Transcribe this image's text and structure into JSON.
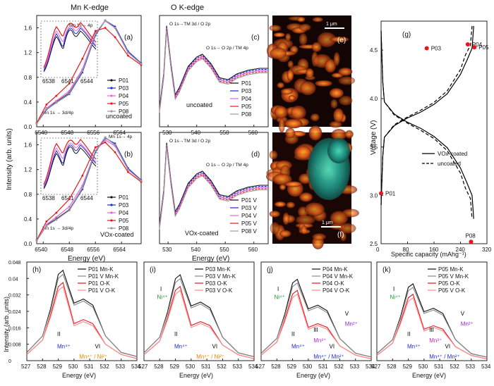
{
  "headers": {
    "mn": "Mn K-edge",
    "o": "O K-edge"
  },
  "colors": {
    "P01": "#111111",
    "P03": "#1f2bd6",
    "P04": "#e066e0",
    "P05": "#e8161b",
    "P08": "#9a9a9a",
    "V": "#888888"
  },
  "labels": {
    "ylabel_top": "Intensity (arb. units)",
    "xlabel_energy": "Energy (eV)",
    "annot_mn_4p": "Mn 1s→ 4p",
    "annot_mn_pre": "Mn 1s → 3d/4p",
    "annot_o_tm3d": "O 1s→TM 3d / O 2p",
    "annot_o_tm4p": "O 1s→ O 2p / TM 4p",
    "uncoated": "uncoated",
    "vox_coated": "VOx-coated",
    "scale": "1 μm",
    "ylabel_g": "Voltage (V)",
    "xlabel_g": "Specific capacity (mAhg⁻¹)"
  },
  "chart_data": [
    {
      "id": "a",
      "type": "line",
      "panel": "(a)",
      "xlim": [
        6538,
        6570
      ],
      "xticks": [
        6540,
        6548,
        6556,
        6564
      ],
      "yticks": [
        0.0,
        0.4,
        0.8,
        1.2,
        1.6
      ],
      "ylim": [
        0,
        1.8
      ],
      "series": [
        {
          "name": "P01",
          "x": [
            6538,
            6541,
            6544,
            6548,
            6552,
            6556,
            6559,
            6562,
            6566,
            6570
          ],
          "values": [
            0.05,
            0.3,
            0.4,
            0.55,
            0.9,
            1.5,
            1.72,
            1.6,
            1.2,
            1.02
          ]
        },
        {
          "name": "P03",
          "x": [
            6538,
            6541,
            6544,
            6548,
            6552,
            6556,
            6559,
            6562,
            6566,
            6570
          ],
          "values": [
            0.05,
            0.28,
            0.39,
            0.53,
            0.88,
            1.48,
            1.72,
            1.62,
            1.22,
            1.03
          ]
        },
        {
          "name": "P04",
          "x": [
            6538,
            6541,
            6544,
            6548,
            6552,
            6556,
            6559,
            6562,
            6566,
            6570
          ],
          "values": [
            0.05,
            0.3,
            0.42,
            0.58,
            0.93,
            1.52,
            1.71,
            1.6,
            1.2,
            1.02
          ]
        },
        {
          "name": "P05",
          "x": [
            6538,
            6541,
            6544,
            6548,
            6552,
            6556,
            6559,
            6562,
            6566,
            6570
          ],
          "values": [
            0.06,
            0.36,
            0.5,
            0.7,
            1.1,
            1.55,
            1.6,
            1.45,
            1.15,
            1.0
          ]
        },
        {
          "name": "P08",
          "x": [
            6538,
            6541,
            6544,
            6548,
            6552,
            6556,
            6559,
            6562,
            6566,
            6570
          ],
          "values": [
            0.05,
            0.29,
            0.39,
            0.54,
            0.9,
            1.5,
            1.72,
            1.6,
            1.2,
            1.02
          ]
        }
      ],
      "inset": {
        "xticks": [
          6538,
          6541,
          6544
        ]
      }
    },
    {
      "id": "b",
      "type": "line",
      "panel": "(b)",
      "xlim": [
        6538,
        6570
      ],
      "xticks": [
        6540,
        6548,
        6556,
        6564
      ],
      "yticks": [
        0.0,
        0.4,
        0.8,
        1.2,
        1.6
      ],
      "ylim": [
        0,
        1.8
      ],
      "series": [
        {
          "name": "P01",
          "x": [
            6538,
            6541,
            6544,
            6548,
            6552,
            6556,
            6559,
            6562,
            6566,
            6570
          ],
          "values": [
            0.05,
            0.3,
            0.4,
            0.55,
            0.9,
            1.5,
            1.72,
            1.6,
            1.2,
            1.02
          ]
        },
        {
          "name": "P03",
          "x": [
            6538,
            6541,
            6544,
            6548,
            6552,
            6556,
            6559,
            6562,
            6566,
            6570
          ],
          "values": [
            0.05,
            0.29,
            0.39,
            0.54,
            0.88,
            1.48,
            1.71,
            1.62,
            1.22,
            1.03
          ]
        },
        {
          "name": "P04",
          "x": [
            6538,
            6541,
            6544,
            6548,
            6552,
            6556,
            6559,
            6562,
            6566,
            6570
          ],
          "values": [
            0.05,
            0.31,
            0.43,
            0.6,
            0.94,
            1.5,
            1.68,
            1.58,
            1.2,
            1.02
          ]
        },
        {
          "name": "P05",
          "x": [
            6538,
            6541,
            6544,
            6548,
            6552,
            6556,
            6559,
            6562,
            6566,
            6570
          ],
          "values": [
            0.06,
            0.36,
            0.5,
            0.72,
            1.1,
            1.56,
            1.64,
            1.48,
            1.16,
            1.0
          ]
        },
        {
          "name": "P08",
          "x": [
            6538,
            6541,
            6544,
            6548,
            6552,
            6556,
            6559,
            6562,
            6566,
            6570
          ],
          "values": [
            0.05,
            0.29,
            0.39,
            0.54,
            0.9,
            1.5,
            1.72,
            1.6,
            1.2,
            1.02
          ]
        }
      ],
      "inset": {
        "xticks": [
          6538,
          6541,
          6544
        ]
      }
    },
    {
      "id": "c",
      "type": "line",
      "panel": "(c)",
      "xlim": [
        527,
        565
      ],
      "xticks": [
        530,
        540,
        550,
        560
      ],
      "series": [
        {
          "name": "P01"
        },
        {
          "name": "P03"
        },
        {
          "name": "P04"
        },
        {
          "name": "P05"
        },
        {
          "name": "P08"
        }
      ]
    },
    {
      "id": "d",
      "type": "line",
      "panel": "(d)",
      "xlim": [
        527,
        565
      ],
      "xticks": [
        530,
        540,
        550,
        560
      ],
      "series": [
        {
          "name": "P01 V"
        },
        {
          "name": "P03 V"
        },
        {
          "name": "P04 V"
        },
        {
          "name": "P05 V"
        },
        {
          "name": "P08 V"
        }
      ]
    },
    {
      "id": "g",
      "type": "line",
      "panel": "(g)",
      "xlim": [
        0,
        320
      ],
      "ylim": [
        2.5,
        4.8
      ],
      "xticks": [
        0,
        80,
        160,
        240,
        320
      ],
      "yticks": [
        2.5,
        3.0,
        3.5,
        4.0,
        4.5
      ],
      "series": [
        {
          "name": "VOx-coated",
          "x": [
            0,
            5,
            10,
            40,
            80,
            120,
            160,
            200,
            240,
            260,
            275,
            280
          ],
          "values": [
            2.9,
            3.4,
            3.6,
            3.72,
            3.8,
            3.86,
            3.94,
            4.05,
            4.25,
            4.4,
            4.52,
            4.75
          ]
        },
        {
          "name": "uncoated",
          "x": [
            0,
            5,
            10,
            40,
            80,
            120,
            160,
            200,
            240,
            255,
            270,
            275
          ],
          "values": [
            2.9,
            3.4,
            3.6,
            3.73,
            3.81,
            3.88,
            3.96,
            4.08,
            4.3,
            4.45,
            4.55,
            4.75
          ]
        }
      ],
      "points": [
        "P01",
        "P03",
        "P04",
        "P05",
        "P08"
      ]
    },
    {
      "id": "h",
      "type": "line",
      "panel": "(h)",
      "xlim": [
        527,
        534
      ],
      "ylim": [
        0,
        0.048
      ],
      "xticks": [
        527,
        528,
        529,
        530,
        531,
        532,
        533,
        534
      ],
      "yticks": [
        0.0,
        0.008,
        0.016,
        0.024,
        0.032,
        0.04,
        0.048
      ],
      "series": [
        {
          "name": "P01 Mn-K",
          "x": [
            527,
            528,
            528.5,
            529,
            529.3,
            530,
            530.6,
            531.2,
            532,
            533,
            534
          ],
          "values": [
            0.004,
            0.012,
            0.025,
            0.042,
            0.044,
            0.028,
            0.03,
            0.027,
            0.012,
            0.004,
            0.002
          ]
        },
        {
          "name": "P01 V Mn-K",
          "x": [
            527,
            528,
            528.5,
            529,
            529.3,
            530,
            530.6,
            531.2,
            532,
            533,
            534
          ],
          "values": [
            0.004,
            0.012,
            0.024,
            0.04,
            0.042,
            0.027,
            0.029,
            0.026,
            0.012,
            0.004,
            0.002
          ]
        },
        {
          "name": "P01 O-K",
          "x": [
            527,
            528,
            528.5,
            529,
            529.3,
            530,
            530.6,
            531.2,
            532,
            533,
            534
          ],
          "values": [
            0.003,
            0.01,
            0.022,
            0.036,
            0.038,
            0.018,
            0.02,
            0.018,
            0.008,
            0.003,
            0.001
          ]
        },
        {
          "name": "P01 V O-K",
          "x": [
            527,
            528,
            528.5,
            529,
            529.3,
            530,
            530.6,
            531.2,
            532,
            533,
            534
          ],
          "values": [
            0.003,
            0.01,
            0.021,
            0.034,
            0.036,
            0.017,
            0.019,
            0.017,
            0.008,
            0.003,
            0.001
          ]
        }
      ],
      "annotations": [
        "II",
        "VI",
        "Mn⁴⁺",
        "Mn⁴⁺ / Ni²⁺"
      ]
    },
    {
      "id": "i",
      "type": "line",
      "panel": "(i)",
      "xlim": [
        527,
        534
      ],
      "xticks": [
        527,
        528,
        529,
        530,
        531,
        532,
        533,
        534
      ],
      "series": [
        {
          "name": "P03 Mn-K"
        },
        {
          "name": "P03 V Mn-K"
        },
        {
          "name": "P03 O-K"
        },
        {
          "name": "P03 V O-K"
        }
      ],
      "annotations": [
        "I",
        "Ni⁴⁺",
        "II",
        "Mn⁴⁺",
        "VI",
        "Mn⁴⁺ / Ni²⁺"
      ]
    },
    {
      "id": "j",
      "type": "line",
      "panel": "(j)",
      "xlim": [
        527,
        534
      ],
      "xticks": [
        527,
        528,
        529,
        530,
        531,
        532,
        533,
        534
      ],
      "series": [
        {
          "name": "P04 Mn-K"
        },
        {
          "name": "P04 V Mn-K"
        },
        {
          "name": "P04 O-K"
        },
        {
          "name": "P04 V O-K"
        }
      ],
      "annotations": [
        "I",
        "Ni⁴⁺",
        "II",
        "Mn⁴⁺",
        "III",
        "Mn³⁺",
        "V",
        "Mn²⁺",
        "VI",
        "Mn⁴⁺ / Mn²⁺"
      ]
    },
    {
      "id": "k",
      "type": "line",
      "panel": "(k)",
      "xlim": [
        527,
        534
      ],
      "xticks": [
        527,
        528,
        529,
        530,
        531,
        532,
        533,
        534
      ],
      "series": [
        {
          "name": "P05 Mn-K"
        },
        {
          "name": "P05 V Mn-K"
        },
        {
          "name": "P05 O-K"
        },
        {
          "name": "P05 V O-K"
        }
      ],
      "annotations": [
        "I",
        "Ni⁴⁺",
        "II",
        "Mn⁴⁺",
        "III",
        "Mn³⁺",
        "V",
        "Mn²⁺",
        "VI",
        "Mn⁴⁺ / Mn²⁺"
      ]
    }
  ]
}
